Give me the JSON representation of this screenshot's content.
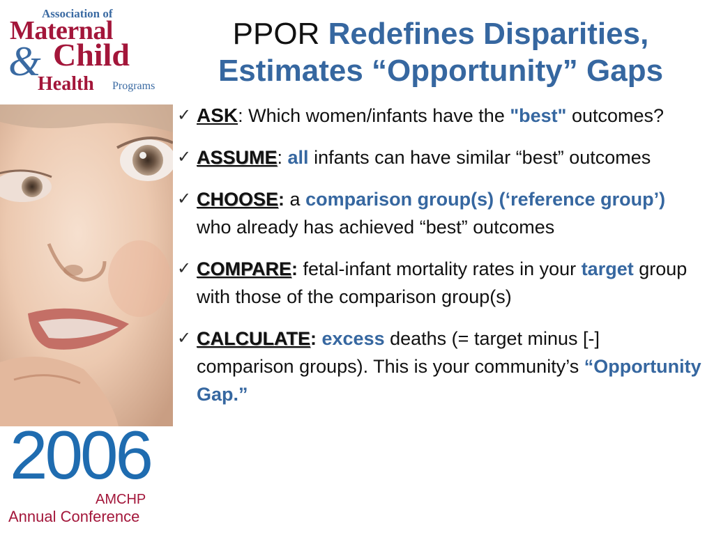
{
  "logo": {
    "association": "Association of",
    "maternal": "Maternal",
    "ampersand": "&",
    "child": "Child",
    "health": "Health",
    "programs": "Programs"
  },
  "conference": {
    "year": "2006",
    "org": "AMCHP",
    "event": "Annual Conference"
  },
  "photo": {
    "subject": "infant face looking up"
  },
  "title": {
    "plain": "PPOR ",
    "emphasis_line1": "Redefines Disparities,",
    "emphasis_line2": "Estimates “Opportunity” Gaps"
  },
  "bullets": [
    {
      "keyword": "ASK",
      "sep": ": ",
      "t1": "Which women/infants have the ",
      "b1": "\"best\"",
      "t2": " outcomes?"
    },
    {
      "keyword": "ASSUME",
      "sep": ": ",
      "b1": "all",
      "t1": " infants can have similar “best” outcomes"
    },
    {
      "keyword": "CHOOSE",
      "sep": ":",
      "t1": " a ",
      "b1": "comparison group(s) (‘reference group’)",
      "t2": " who already has achieved “best” outcomes"
    },
    {
      "keyword": "COMPARE",
      "sep": ":",
      "t1": " fetal-infant mortality rates in your ",
      "b1": "target",
      "t2": " group with those of the comparison group(s)"
    },
    {
      "keyword": "CALCULATE",
      "sep": ":",
      "t0": " ",
      "b1": "excess",
      "t1": " deaths (= target minus [-]  comparison groups).  This is your community’s ",
      "b2": "“Opportunity Gap.”"
    }
  ],
  "icons": {
    "bullet": "checkmark-icon",
    "glyph": "✓"
  },
  "colors": {
    "accent_blue": "#3667a0",
    "logo_red": "#a3163a",
    "logo_blue": "#3a6aa2",
    "year_blue": "#1f6cb0"
  }
}
